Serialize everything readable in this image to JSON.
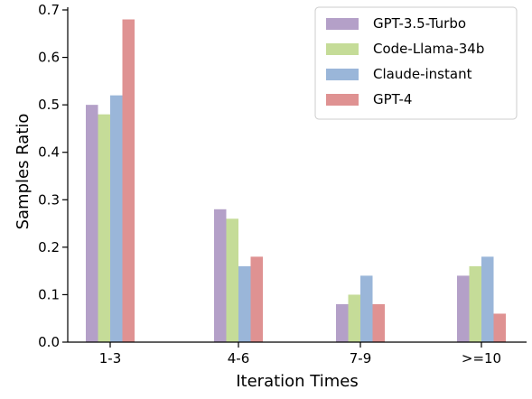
{
  "chart_data": {
    "type": "bar",
    "title": "",
    "xlabel": "Iteration Times",
    "ylabel": "Samples Ratio",
    "categories": [
      "1-3",
      "4-6",
      "7-9",
      ">=10"
    ],
    "ylim": [
      0,
      0.7
    ],
    "yticks": [
      "0.0",
      "0.1",
      "0.2",
      "0.3",
      "0.4",
      "0.5",
      "0.6",
      "0.7"
    ],
    "grid": false,
    "legend_position": "top-right",
    "series": [
      {
        "name": "GPT-3.5-Turbo",
        "color": "#b4a0c8",
        "values": [
          0.5,
          0.28,
          0.08,
          0.14
        ]
      },
      {
        "name": "Code-Llama-34b",
        "color": "#c5dc98",
        "values": [
          0.48,
          0.26,
          0.1,
          0.16
        ]
      },
      {
        "name": "Claude-instant",
        "color": "#9ab6d9",
        "values": [
          0.52,
          0.16,
          0.14,
          0.18
        ]
      },
      {
        "name": "GPT-4",
        "color": "#df9292",
        "values": [
          0.68,
          0.18,
          0.08,
          0.06
        ]
      }
    ]
  }
}
